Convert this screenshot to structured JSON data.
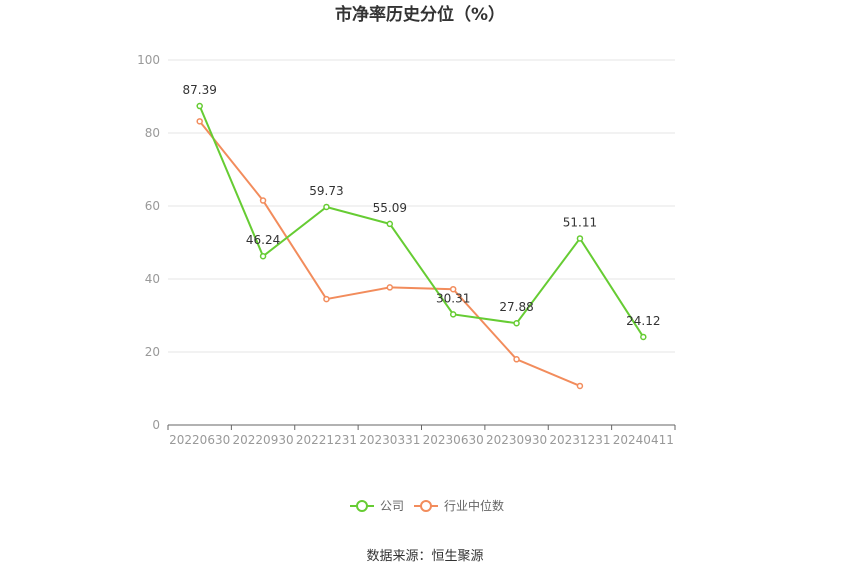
{
  "source": "数据来源：恒生聚源",
  "chart_data": {
    "type": "line",
    "title": "市净率历史分位（%）",
    "categories": [
      "20220630",
      "20220930",
      "20221231",
      "20230331",
      "20230630",
      "20230930",
      "20231231",
      "20240411"
    ],
    "ylim": [
      0,
      100
    ],
    "yticks": [
      0,
      20,
      40,
      60,
      80,
      100
    ],
    "grid": true,
    "legend_position": "bottom",
    "series": [
      {
        "name": "公司",
        "color": "#66cc33",
        "values": [
          87.39,
          46.24,
          59.73,
          55.09,
          30.31,
          27.88,
          51.11,
          24.12
        ],
        "labels": [
          "87.39",
          "46.24",
          "59.73",
          "55.09",
          "30.31",
          "27.88",
          "51.11",
          "24.12"
        ]
      },
      {
        "name": "行业中位数",
        "color": "#f28c5c",
        "values": [
          83.2,
          61.5,
          34.5,
          37.7,
          37.2,
          18.0,
          10.7,
          null
        ]
      }
    ]
  }
}
